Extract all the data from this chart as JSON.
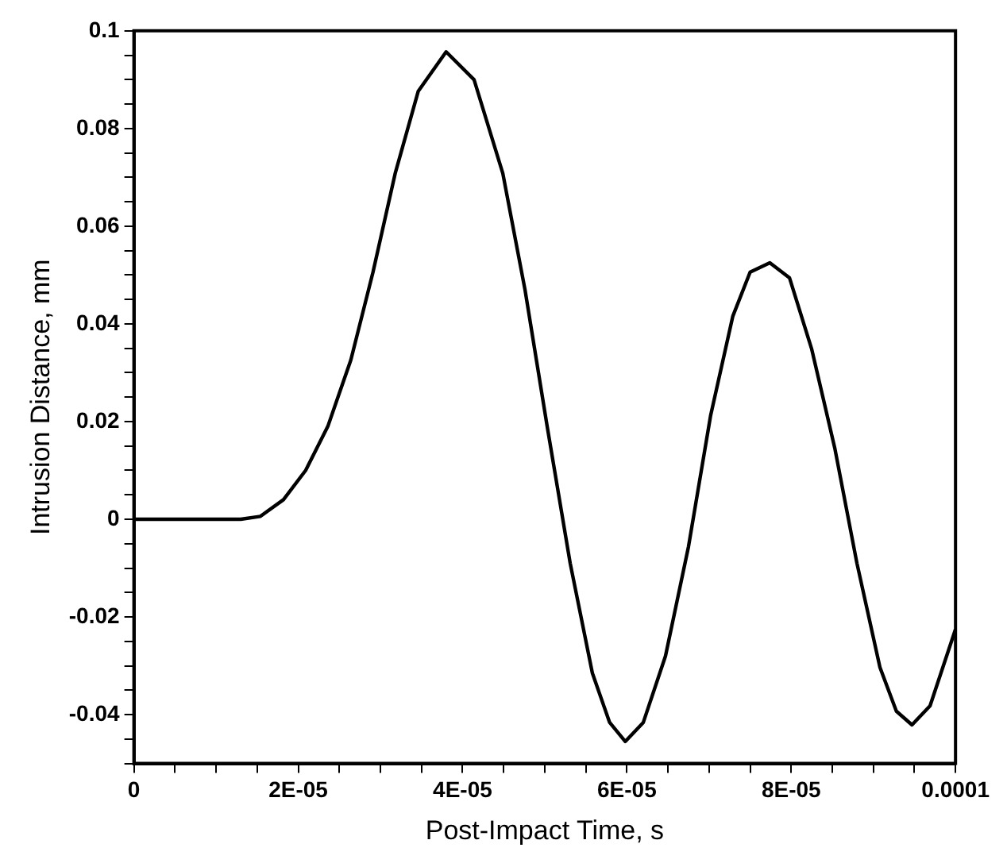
{
  "chart_data": {
    "type": "line",
    "xlabel": "Post-Impact Time, s",
    "ylabel": "Intrusion Distance, mm",
    "x": [
      0,
      5e-06,
      1e-05,
      1.3e-05,
      1.54e-05,
      1.82e-05,
      2.09e-05,
      2.36e-05,
      2.64e-05,
      2.91e-05,
      3.18e-05,
      3.46e-05,
      3.8e-05,
      4.14e-05,
      4.49e-05,
      4.76e-05,
      5.03e-05,
      5.31e-05,
      5.58e-05,
      5.79e-05,
      5.98e-05,
      6.2e-05,
      6.47e-05,
      6.75e-05,
      7.02e-05,
      7.29e-05,
      7.5e-05,
      7.74e-05,
      7.98e-05,
      8.25e-05,
      8.53e-05,
      8.8e-05,
      9.08e-05,
      9.28e-05,
      9.47e-05,
      9.69e-05,
      0.0001
    ],
    "series": [
      {
        "color": "#000000",
        "values": [
          0,
          0,
          0,
          0,
          0.0006,
          0.004,
          0.01,
          0.019,
          0.0326,
          0.0506,
          0.0708,
          0.0876,
          0.0957,
          0.09,
          0.0708,
          0.047,
          0.019,
          -0.009,
          -0.0315,
          -0.0416,
          -0.0455,
          -0.0416,
          -0.028,
          -0.0056,
          0.0213,
          0.0416,
          0.0506,
          0.0525,
          0.0494,
          0.0348,
          0.0146,
          -0.009,
          -0.0303,
          -0.0393,
          -0.0421,
          -0.0382,
          -0.0225
        ]
      }
    ],
    "xlim": [
      0,
      0.0001
    ],
    "ylim": [
      -0.05,
      0.1
    ],
    "xticks": [
      0,
      {
        "value": 5e-06,
        "label": null
      },
      {
        "value": 1e-05,
        "label": null
      },
      {
        "value": 1.5e-05,
        "label": null
      },
      {
        "value": 2e-05,
        "label": "2E-05"
      },
      {
        "value": 2.5e-05,
        "label": null
      },
      {
        "value": 3e-05,
        "label": null
      },
      {
        "value": 3.5e-05,
        "label": null
      },
      {
        "value": 4e-05,
        "label": "4E-05"
      },
      {
        "value": 4.5e-05,
        "label": null
      },
      {
        "value": 5e-05,
        "label": null
      },
      {
        "value": 5.5e-05,
        "label": null
      },
      {
        "value": 6e-05,
        "label": "6E-05"
      },
      {
        "value": 6.5e-05,
        "label": null
      },
      {
        "value": 7e-05,
        "label": null
      },
      {
        "value": 7.5e-05,
        "label": null
      },
      {
        "value": 8e-05,
        "label": "8E-05"
      },
      {
        "value": 8.5e-05,
        "label": null
      },
      {
        "value": 9e-05,
        "label": null
      },
      {
        "value": 9.5e-05,
        "label": null
      },
      0.0001
    ],
    "yticks": [
      {
        "value": -0.05,
        "label": null
      },
      {
        "value": -0.045,
        "label": null
      },
      -0.04,
      {
        "value": -0.035,
        "label": null
      },
      {
        "value": -0.03,
        "label": null
      },
      {
        "value": -0.025,
        "label": null
      },
      -0.02,
      {
        "value": -0.015,
        "label": null
      },
      {
        "value": -0.01,
        "label": null
      },
      {
        "value": -0.005,
        "label": null
      },
      0,
      {
        "value": 0.005,
        "label": null
      },
      {
        "value": 0.01,
        "label": null
      },
      {
        "value": 0.015,
        "label": null
      },
      0.02,
      {
        "value": 0.025,
        "label": null
      },
      {
        "value": 0.03,
        "label": null
      },
      {
        "value": 0.035,
        "label": null
      },
      0.04,
      {
        "value": 0.045,
        "label": null
      },
      {
        "value": 0.05,
        "label": null
      },
      {
        "value": 0.055,
        "label": null
      },
      0.06,
      {
        "value": 0.065,
        "label": null
      },
      {
        "value": 0.07,
        "label": null
      },
      {
        "value": 0.075,
        "label": null
      },
      0.08,
      {
        "value": 0.085,
        "label": null
      },
      {
        "value": 0.09,
        "label": null
      },
      {
        "value": 0.095,
        "label": null
      },
      0.1
    ],
    "grid": false,
    "legend": false,
    "marker": "none",
    "line_style": "solid"
  }
}
